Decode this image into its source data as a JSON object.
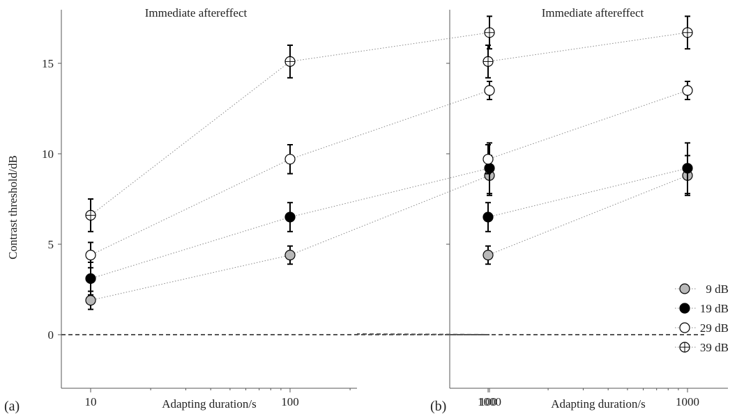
{
  "ylabel": "Contrast threshold/dB",
  "colors": {
    "9 dB": "#b8b8b8",
    "19 dB": "#000000",
    "29 dB": "#ffffff",
    "39 dB": "#ffffff",
    "axis": "#555555",
    "connector": "#888888",
    "baseline": "#555555"
  },
  "chart_data": [
    {
      "type": "scatter",
      "panel_label": "(a)",
      "title": "Immediate aftereffect",
      "xlabel": "Adapting duration/s",
      "ylabel": "Contrast threshold/dB",
      "x_scale": "log",
      "x_ticks": [
        10,
        100,
        1000
      ],
      "x_tick_labels": [
        "10",
        "100",
        "1000"
      ],
      "y_ticks": [
        0,
        5,
        10,
        15
      ],
      "y_tick_labels": [
        "0",
        "5",
        "10",
        "15"
      ],
      "baseline": 0,
      "series": [
        {
          "name": "9 dB",
          "marker": "filled-gray",
          "x": [
            10,
            100,
            1000
          ],
          "y": [
            1.9,
            4.4,
            8.8
          ],
          "err_low": [
            0.5,
            0.5,
            1.1
          ],
          "err_high": [
            0.5,
            0.5,
            1.1
          ]
        },
        {
          "name": "19 dB",
          "marker": "filled-black",
          "x": [
            10,
            100,
            1000
          ],
          "y": [
            3.1,
            6.5,
            9.2
          ],
          "err_low": [
            0.9,
            0.8,
            1.4
          ],
          "err_high": [
            0.9,
            0.8,
            1.4
          ]
        },
        {
          "name": "29 dB",
          "marker": "open-circle",
          "x": [
            10,
            100,
            1000
          ],
          "y": [
            4.4,
            9.7,
            13.5
          ],
          "err_low": [
            0.7,
            0.8,
            0.5
          ],
          "err_high": [
            0.7,
            0.8,
            0.5
          ]
        },
        {
          "name": "39 dB",
          "marker": "circle-plus",
          "x": [
            10,
            100,
            1000
          ],
          "y": [
            6.6,
            15.1,
            16.7
          ],
          "err_low": [
            0.9,
            0.9,
            0.9
          ],
          "err_high": [
            0.9,
            0.9,
            0.9
          ]
        }
      ]
    },
    {
      "type": "scatter",
      "panel_label": "(b)",
      "title": "Immediate aftereffect",
      "xlabel": "Adapting duration/s",
      "x_scale": "log",
      "x_ticks": [
        100,
        1000
      ],
      "x_tick_labels": [
        "100",
        "1000"
      ],
      "baseline": 0,
      "legend": "bottom-right",
      "series": [
        {
          "name": "9 dB",
          "marker": "filled-gray",
          "x": [
            100,
            1000
          ],
          "y": [
            4.4,
            8.8
          ],
          "err_low": [
            0.5,
            1.1
          ],
          "err_high": [
            0.5,
            1.1
          ]
        },
        {
          "name": "19 dB",
          "marker": "filled-black",
          "x": [
            100,
            1000
          ],
          "y": [
            6.5,
            9.2
          ],
          "err_low": [
            0.8,
            1.4
          ],
          "err_high": [
            0.8,
            1.4
          ]
        },
        {
          "name": "29 dB",
          "marker": "open-circle",
          "x": [
            100,
            1000
          ],
          "y": [
            9.7,
            13.5
          ],
          "err_low": [
            0.8,
            0.5
          ],
          "err_high": [
            0.8,
            0.5
          ]
        },
        {
          "name": "39 dB",
          "marker": "circle-plus",
          "x": [
            100,
            1000
          ],
          "y": [
            15.1,
            16.7
          ],
          "err_low": [
            0.9,
            0.9
          ],
          "err_high": [
            0.9,
            0.9
          ]
        }
      ]
    }
  ]
}
